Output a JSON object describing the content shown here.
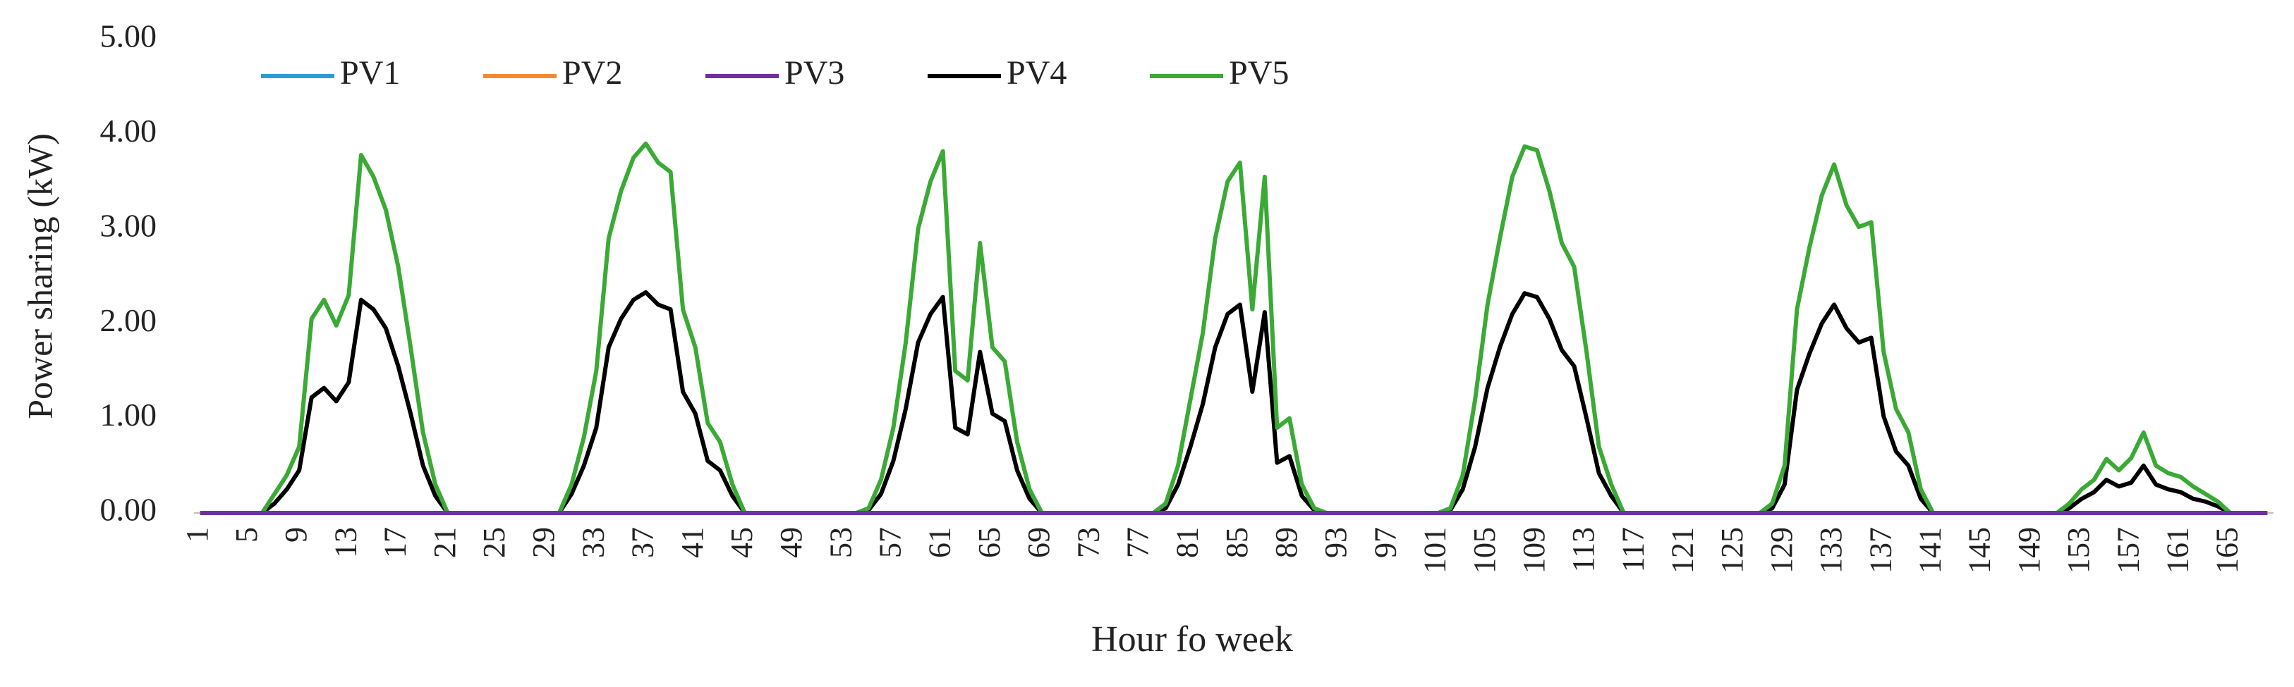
{
  "chart_data": {
    "type": "line",
    "xlabel": "Hour fo week",
    "ylabel": "Power sharing (kW)",
    "legend": "top-left",
    "grid": false,
    "ylim": [
      0,
      5
    ],
    "yticks": [
      {
        "value": 0,
        "label": "0.00"
      },
      {
        "value": 1,
        "label": "1.00"
      },
      {
        "value": 2,
        "label": "2.00"
      },
      {
        "value": 3,
        "label": "3.00"
      },
      {
        "value": 4,
        "label": "4.00"
      },
      {
        "value": 5,
        "label": "5.00"
      }
    ],
    "categories": [
      "1",
      null,
      null,
      null,
      "5",
      null,
      null,
      null,
      "9",
      null,
      null,
      null,
      "13",
      null,
      null,
      null,
      "17",
      null,
      null,
      null,
      "21",
      null,
      null,
      null,
      "25",
      null,
      null,
      null,
      "29",
      null,
      null,
      null,
      "33",
      null,
      null,
      null,
      "37",
      null,
      null,
      null,
      "41",
      null,
      null,
      null,
      "45",
      null,
      null,
      null,
      "49",
      null,
      null,
      null,
      "53",
      null,
      null,
      null,
      "57",
      null,
      null,
      null,
      "61",
      null,
      null,
      null,
      "65",
      null,
      null,
      null,
      "69",
      null,
      null,
      null,
      "73",
      null,
      null,
      null,
      "77",
      null,
      null,
      null,
      "81",
      null,
      null,
      null,
      "85",
      null,
      null,
      null,
      "89",
      null,
      null,
      null,
      "93",
      null,
      null,
      null,
      "97",
      null,
      null,
      null,
      "101",
      null,
      null,
      null,
      "105",
      null,
      null,
      null,
      "109",
      null,
      null,
      null,
      "113",
      null,
      null,
      null,
      "117",
      null,
      null,
      null,
      "121",
      null,
      null,
      null,
      "125",
      null,
      null,
      null,
      "129",
      null,
      null,
      null,
      "133",
      null,
      null,
      null,
      "137",
      null,
      null,
      null,
      "141",
      null,
      null,
      null,
      "145",
      null,
      null,
      null,
      "149",
      null,
      null,
      null,
      "153",
      null,
      null,
      null,
      "157",
      null,
      null,
      null,
      "161",
      null,
      null,
      null,
      "165",
      null,
      null,
      null
    ],
    "series": [
      {
        "name": "PV1",
        "color": "#2e9bd6",
        "values": [
          0,
          0,
          0,
          0,
          0,
          0,
          0,
          0,
          0,
          0,
          0,
          0,
          0,
          0,
          0,
          0,
          0,
          0,
          0,
          0,
          0,
          0,
          0,
          0,
          0,
          0,
          0,
          0,
          0,
          0,
          0,
          0,
          0,
          0,
          0,
          0,
          0,
          0,
          0,
          0,
          0,
          0,
          0,
          0,
          0,
          0,
          0,
          0,
          0,
          0,
          0,
          0,
          0,
          0,
          0,
          0,
          0,
          0,
          0,
          0,
          0,
          0,
          0,
          0,
          0,
          0,
          0,
          0,
          0,
          0,
          0,
          0,
          0,
          0,
          0,
          0,
          0,
          0,
          0,
          0,
          0,
          0,
          0,
          0,
          0,
          0,
          0,
          0,
          0,
          0,
          0,
          0,
          0,
          0,
          0,
          0,
          0,
          0,
          0,
          0,
          0,
          0,
          0,
          0,
          0,
          0,
          0,
          0,
          0,
          0,
          0,
          0,
          0,
          0,
          0,
          0,
          0,
          0,
          0,
          0,
          0,
          0,
          0,
          0,
          0,
          0,
          0,
          0,
          0,
          0,
          0,
          0,
          0,
          0,
          0,
          0,
          0,
          0,
          0,
          0,
          0,
          0,
          0,
          0,
          0,
          0,
          0,
          0,
          0,
          0,
          0,
          0,
          0,
          0,
          0,
          0,
          0,
          0,
          0,
          0,
          0,
          0,
          0,
          0,
          0,
          0,
          0,
          0
        ]
      },
      {
        "name": "PV2",
        "color": "#f28a30",
        "values": [
          0,
          0,
          0,
          0,
          0,
          0,
          0,
          0,
          0,
          0,
          0,
          0,
          0,
          0,
          0,
          0,
          0,
          0,
          0,
          0,
          0,
          0,
          0,
          0,
          0,
          0,
          0,
          0,
          0,
          0,
          0,
          0,
          0,
          0,
          0,
          0,
          0,
          0,
          0,
          0,
          0,
          0,
          0,
          0,
          0,
          0,
          0,
          0,
          0,
          0,
          0,
          0,
          0,
          0,
          0,
          0,
          0,
          0,
          0,
          0,
          0,
          0,
          0,
          0,
          0,
          0,
          0,
          0,
          0,
          0,
          0,
          0,
          0,
          0,
          0,
          0,
          0,
          0,
          0,
          0,
          0,
          0,
          0,
          0,
          0,
          0,
          0,
          0,
          0,
          0,
          0,
          0,
          0,
          0,
          0,
          0,
          0,
          0,
          0,
          0,
          0,
          0,
          0,
          0,
          0,
          0,
          0,
          0,
          0,
          0,
          0,
          0,
          0,
          0,
          0,
          0,
          0,
          0,
          0,
          0,
          0,
          0,
          0,
          0,
          0,
          0,
          0,
          0,
          0,
          0,
          0,
          0,
          0,
          0,
          0,
          0,
          0,
          0,
          0,
          0,
          0,
          0,
          0,
          0,
          0,
          0,
          0,
          0,
          0,
          0,
          0,
          0,
          0,
          0,
          0,
          0,
          0,
          0,
          0,
          0,
          0,
          0,
          0,
          0,
          0,
          0,
          0,
          0
        ]
      },
      {
        "name": "PV3",
        "color": "#7030a0",
        "values": [
          0,
          0,
          0,
          0,
          0,
          0,
          0,
          0,
          0,
          0,
          0,
          0,
          0,
          0,
          0,
          0,
          0,
          0,
          0,
          0,
          0,
          0,
          0,
          0,
          0,
          0,
          0,
          0,
          0,
          0,
          0,
          0,
          0,
          0,
          0,
          0,
          0,
          0,
          0,
          0,
          0,
          0,
          0,
          0,
          0,
          0,
          0,
          0,
          0,
          0,
          0,
          0,
          0,
          0,
          0,
          0,
          0,
          0,
          0,
          0,
          0,
          0,
          0,
          0,
          0,
          0,
          0,
          0,
          0,
          0,
          0,
          0,
          0,
          0,
          0,
          0,
          0,
          0,
          0,
          0,
          0,
          0,
          0,
          0,
          0,
          0,
          0,
          0,
          0,
          0,
          0,
          0,
          0,
          0,
          0,
          0,
          0,
          0,
          0,
          0,
          0,
          0,
          0,
          0,
          0,
          0,
          0,
          0,
          0,
          0,
          0,
          0,
          0,
          0,
          0,
          0,
          0,
          0,
          0,
          0,
          0,
          0,
          0,
          0,
          0,
          0,
          0,
          0,
          0,
          0,
          0,
          0,
          0,
          0,
          0,
          0,
          0,
          0,
          0,
          0,
          0,
          0,
          0,
          0,
          0,
          0,
          0,
          0,
          0,
          0,
          0,
          0,
          0,
          0,
          0,
          0,
          0,
          0,
          0,
          0,
          0,
          0,
          0,
          0,
          0,
          0,
          0,
          0
        ]
      },
      {
        "name": "PV4",
        "color": "#000000",
        "values": [
          0,
          0,
          0,
          0,
          0,
          0,
          0.1,
          0.25,
          0.45,
          1.22,
          1.32,
          1.18,
          1.38,
          2.25,
          2.15,
          1.95,
          1.55,
          1.05,
          0.5,
          0.18,
          0,
          0,
          0,
          0,
          0,
          0,
          0,
          0,
          0,
          0,
          0.2,
          0.5,
          0.9,
          1.75,
          2.05,
          2.25,
          2.33,
          2.2,
          2.15,
          1.28,
          1.05,
          0.55,
          0.45,
          0.18,
          0,
          0,
          0,
          0,
          0,
          0,
          0,
          0,
          0,
          0,
          0.03,
          0.2,
          0.55,
          1.1,
          1.8,
          2.1,
          2.28,
          0.9,
          0.83,
          1.7,
          1.05,
          0.97,
          0.45,
          0.15,
          0,
          0,
          0,
          0,
          0,
          0,
          0,
          0,
          0,
          0,
          0.05,
          0.3,
          0.7,
          1.15,
          1.75,
          2.1,
          2.2,
          1.28,
          2.12,
          0.53,
          0.6,
          0.18,
          0.03,
          0,
          0,
          0,
          0,
          0,
          0,
          0,
          0,
          0,
          0,
          0.03,
          0.25,
          0.7,
          1.32,
          1.75,
          2.1,
          2.32,
          2.28,
          2.05,
          1.72,
          1.55,
          1.0,
          0.42,
          0.18,
          0,
          0,
          0,
          0,
          0,
          0,
          0,
          0,
          0,
          0,
          0,
          0,
          0.05,
          0.3,
          1.3,
          1.68,
          2.0,
          2.2,
          1.95,
          1.8,
          1.85,
          1.02,
          0.65,
          0.5,
          0.15,
          0,
          0,
          0,
          0,
          0,
          0,
          0,
          0,
          0,
          0,
          0,
          0.05,
          0.15,
          0.22,
          0.35,
          0.28,
          0.32,
          0.5,
          0.3,
          0.25,
          0.22,
          0.15,
          0.12,
          0.07,
          0,
          0,
          0,
          0
        ]
      },
      {
        "name": "PV5",
        "color": "#3aaa35",
        "values": [
          0,
          0,
          0,
          0,
          0,
          0,
          0.2,
          0.4,
          0.7,
          2.05,
          2.25,
          1.98,
          2.3,
          3.78,
          3.55,
          3.2,
          2.6,
          1.75,
          0.85,
          0.3,
          0,
          0,
          0,
          0,
          0,
          0,
          0,
          0,
          0,
          0,
          0.3,
          0.8,
          1.5,
          2.9,
          3.4,
          3.75,
          3.9,
          3.7,
          3.6,
          2.15,
          1.75,
          0.95,
          0.75,
          0.3,
          0,
          0,
          0,
          0,
          0,
          0,
          0,
          0,
          0,
          0,
          0.05,
          0.35,
          0.9,
          1.8,
          3.0,
          3.5,
          3.82,
          1.5,
          1.4,
          2.85,
          1.75,
          1.6,
          0.75,
          0.25,
          0,
          0,
          0,
          0,
          0,
          0,
          0,
          0,
          0,
          0,
          0.1,
          0.5,
          1.2,
          1.9,
          2.9,
          3.5,
          3.7,
          2.15,
          3.55,
          0.9,
          1.0,
          0.3,
          0.05,
          0,
          0,
          0,
          0,
          0,
          0,
          0,
          0,
          0,
          0,
          0.05,
          0.4,
          1.2,
          2.2,
          2.9,
          3.55,
          3.87,
          3.83,
          3.4,
          2.85,
          2.6,
          1.7,
          0.7,
          0.3,
          0,
          0,
          0,
          0,
          0,
          0,
          0,
          0,
          0,
          0,
          0,
          0,
          0.1,
          0.5,
          2.15,
          2.8,
          3.35,
          3.68,
          3.25,
          3.02,
          3.07,
          1.7,
          1.1,
          0.85,
          0.25,
          0,
          0,
          0,
          0,
          0,
          0,
          0,
          0,
          0,
          0,
          0,
          0.1,
          0.25,
          0.35,
          0.57,
          0.45,
          0.58,
          0.85,
          0.5,
          0.42,
          0.38,
          0.28,
          0.2,
          0.12,
          0,
          0,
          0,
          0
        ]
      }
    ]
  }
}
